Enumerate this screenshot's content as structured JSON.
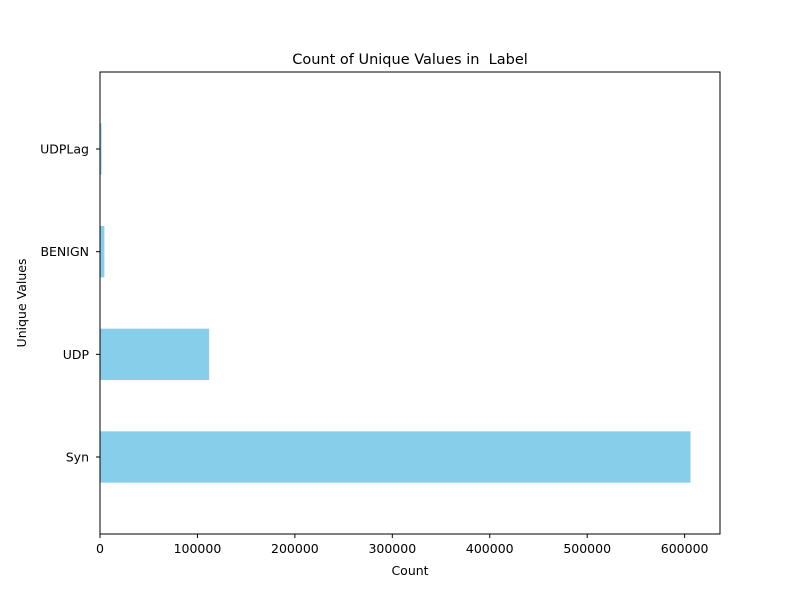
{
  "chart_data": {
    "type": "bar",
    "orientation": "horizontal",
    "title": "Count of Unique Values in  Label",
    "xlabel": "Count",
    "ylabel": "Unique Values",
    "categories": [
      "Syn",
      "UDP",
      "BENIGN",
      "UDPLag"
    ],
    "values": [
      606000,
      112000,
      4500,
      1500
    ],
    "xlim": [
      0,
      636300
    ],
    "xticks": [
      0,
      100000,
      200000,
      300000,
      400000,
      500000,
      600000
    ],
    "grid": false,
    "bar_color": "#87ceeb"
  }
}
